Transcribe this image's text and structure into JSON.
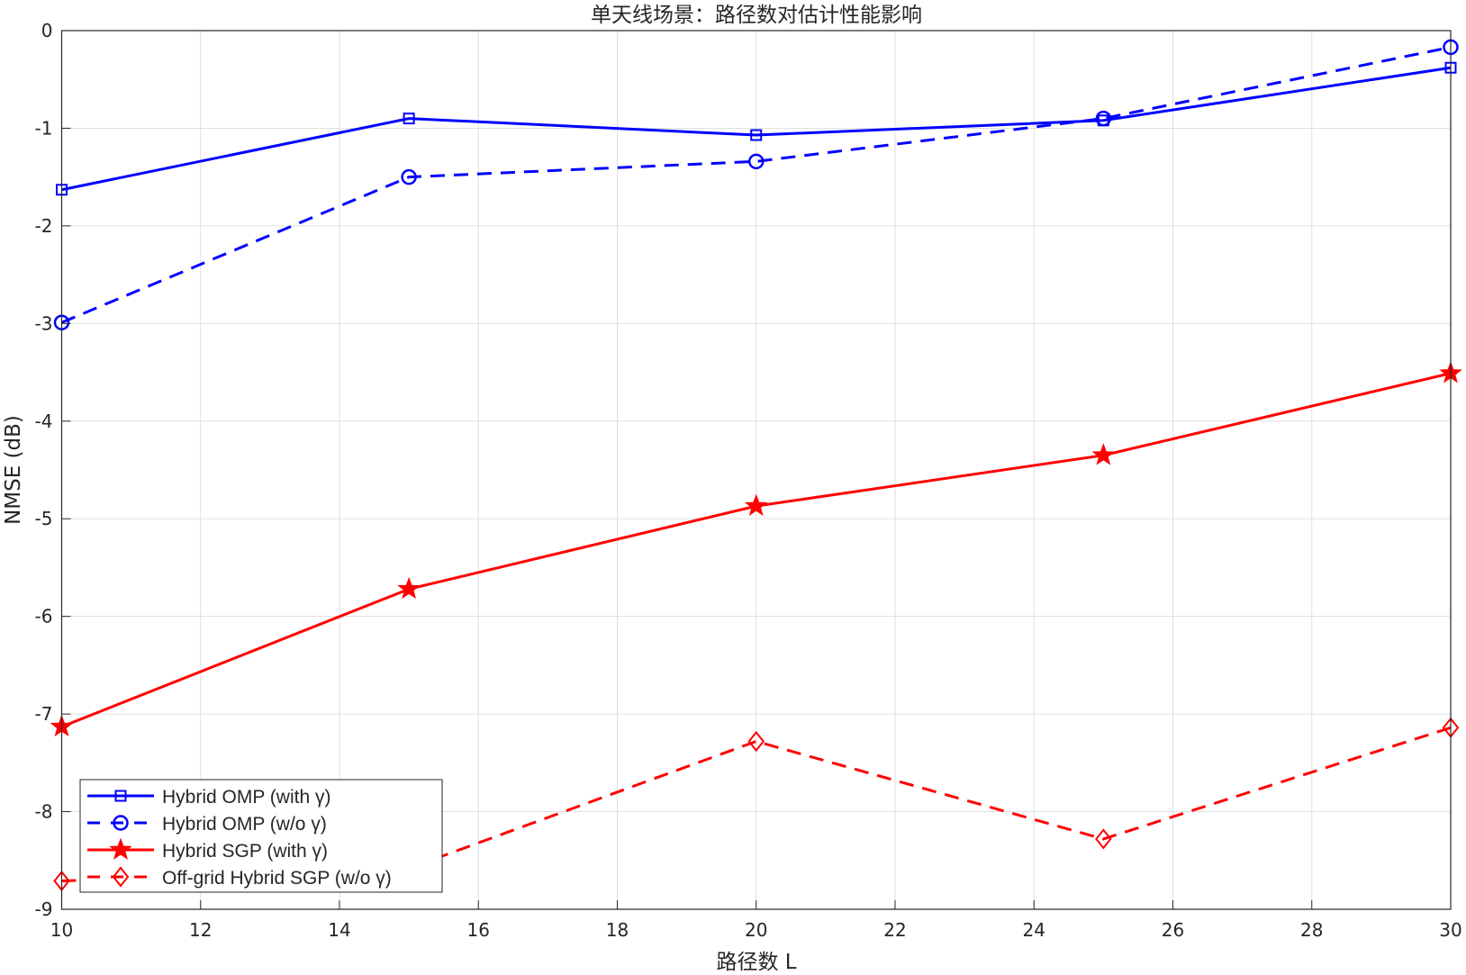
{
  "chart_data": {
    "type": "line",
    "title": "单天线场景：路径数对估计性能影响",
    "xlabel": "路径数 L",
    "ylabel": "NMSE (dB)",
    "xlim": [
      10,
      30
    ],
    "ylim": [
      -9,
      0
    ],
    "xticks": [
      10,
      12,
      14,
      16,
      18,
      20,
      22,
      24,
      26,
      28,
      30
    ],
    "yticks": [
      0,
      -1,
      -2,
      -3,
      -4,
      -5,
      -6,
      -7,
      -8,
      -9
    ],
    "grid": true,
    "legend_position": "bottom-left",
    "x": [
      10,
      15,
      20,
      25,
      30
    ],
    "series": [
      {
        "name": "Hybrid  OMP  (with  γ)",
        "values": [
          -1.63,
          -0.9,
          -1.07,
          -0.92,
          -0.38
        ],
        "color": "#0000ff",
        "dash": "solid",
        "marker": "square"
      },
      {
        "name": "Hybrid  OMP  (w/o  γ)",
        "values": [
          -2.99,
          -1.5,
          -1.34,
          -0.9,
          -0.17
        ],
        "color": "#0000ff",
        "dash": "dashed",
        "marker": "circle"
      },
      {
        "name": "Hybrid  SGP  (with  γ)",
        "values": [
          -7.13,
          -5.72,
          -4.87,
          -4.35,
          -3.51
        ],
        "color": "#ff0000",
        "dash": "solid",
        "marker": "star"
      },
      {
        "name": "Off-grid  Hybrid  SGP  (w/o  γ)",
        "values": [
          -8.71,
          -8.58,
          -7.28,
          -8.28,
          -7.14
        ],
        "color": "#ff0000",
        "dash": "dashed",
        "marker": "diamond"
      }
    ]
  }
}
